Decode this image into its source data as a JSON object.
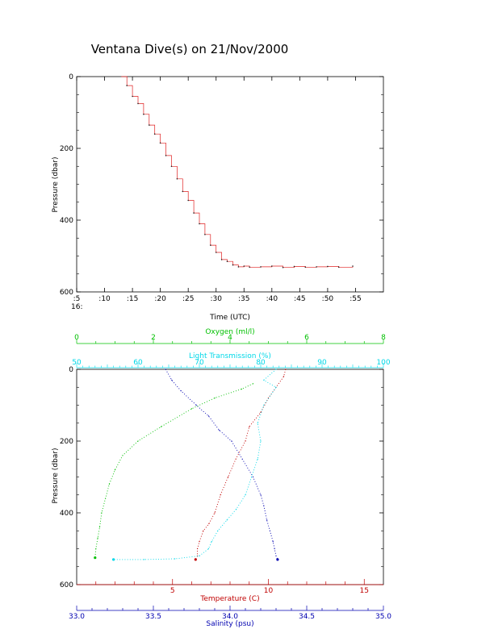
{
  "title": "Ventana Dive(s) on 21/Nov/2000",
  "colors": {
    "axis": "#000000",
    "trace": "#e02020",
    "oxygen": "#00c000",
    "transmission": "#00d8e8",
    "temperature": "#c00000",
    "salinity": "#0000b0"
  },
  "chart_data": [
    {
      "type": "line",
      "title": "Ventana Dive(s) on 21/Nov/2000",
      "xlabel": "Time (UTC)",
      "ylabel": "Pressure (dbar)",
      "x_unit": "minutes past 16:00 UTC",
      "xlim": [
        5,
        60
      ],
      "ylim": [
        600,
        0
      ],
      "x_tick_labels": [
        ":5",
        ":10",
        ":15",
        ":20",
        ":25",
        ":30",
        ":35",
        ":40",
        ":45",
        ":50",
        ":55"
      ],
      "x_tick_values": [
        5,
        10,
        15,
        20,
        25,
        30,
        35,
        40,
        45,
        50,
        55
      ],
      "x_hour_label": "16:",
      "y_ticks": [
        0,
        200,
        400,
        600
      ],
      "grid": false,
      "series": [
        {
          "color": "#e02020",
          "style": "step",
          "x": [
            13.0,
            14.0,
            15.0,
            16.0,
            17.0,
            18.0,
            19.0,
            20.0,
            21.0,
            22.0,
            23.0,
            24.0,
            25.0,
            26.0,
            27.0,
            28.0,
            29.0,
            30.0,
            31.0,
            32.0,
            33.0,
            34.0,
            35.0,
            36.0,
            38.0,
            40.0,
            42.0,
            44.0,
            46.0,
            48.0,
            50.0,
            52.0,
            54.5
          ],
          "y": [
            0,
            25,
            55,
            75,
            105,
            135,
            160,
            185,
            220,
            250,
            285,
            320,
            345,
            380,
            410,
            440,
            470,
            490,
            510,
            515,
            525,
            530,
            528,
            531,
            530,
            528,
            532,
            529,
            531,
            530,
            529,
            531,
            528
          ]
        }
      ]
    },
    {
      "type": "scatter",
      "ylabel": "Pressure (dbar)",
      "ylim": [
        600,
        0
      ],
      "y_ticks": [
        0,
        200,
        400,
        600
      ],
      "grid": false,
      "axes": {
        "oxygen": {
          "label": "Oxygen (ml/l)",
          "range": [
            0,
            8
          ],
          "ticks": [
            0,
            2,
            4,
            6,
            8
          ],
          "position": "top"
        },
        "transmission": {
          "label": "Light Transmission (%)",
          "range": [
            50,
            100
          ],
          "ticks": [
            50,
            60,
            70,
            80,
            90,
            100
          ],
          "position": "top"
        },
        "temperature": {
          "label": "Temperature (C)",
          "range": [
            0,
            16
          ],
          "ticks": [
            5,
            10,
            15
          ],
          "position": "bottom"
        },
        "salinity": {
          "label": "Salinity (psu)",
          "range": [
            33.0,
            35.0
          ],
          "ticks": [
            33.0,
            33.5,
            34.0,
            34.5,
            35.0
          ],
          "position": "bottom"
        }
      },
      "series": [
        {
          "axis": "temperature",
          "color": "#c00000",
          "x": [
            10.9,
            10.8,
            10.4,
            10.0,
            9.6,
            9.0,
            8.8,
            8.3,
            7.9,
            7.5,
            7.2,
            6.9,
            6.6,
            6.4,
            6.3,
            6.3,
            6.2
          ],
          "y": [
            0,
            20,
            50,
            80,
            120,
            160,
            200,
            250,
            300,
            350,
            400,
            430,
            450,
            480,
            500,
            520,
            530
          ]
        },
        {
          "axis": "salinity",
          "color": "#0000b0",
          "x": [
            33.58,
            33.62,
            33.68,
            33.78,
            33.86,
            33.93,
            34.01,
            34.08,
            34.15,
            34.2,
            34.22,
            34.24,
            34.26,
            34.28,
            34.29,
            34.3,
            34.31
          ],
          "y": [
            0,
            30,
            60,
            100,
            130,
            170,
            200,
            250,
            300,
            350,
            380,
            420,
            450,
            480,
            500,
            520,
            530
          ]
        },
        {
          "axis": "oxygen",
          "color": "#00c000",
          "x": [
            4.6,
            4.3,
            3.6,
            3.0,
            2.2,
            1.6,
            1.2,
            1.0,
            0.85,
            0.75,
            0.65,
            0.6,
            0.55,
            0.5,
            0.48
          ],
          "y": [
            40,
            55,
            80,
            110,
            160,
            200,
            240,
            280,
            320,
            360,
            400,
            440,
            470,
            500,
            525
          ]
        },
        {
          "axis": "transmission",
          "color": "#00d8e8",
          "x": [
            82.5,
            80.5,
            82.5,
            80.5,
            79.5,
            80.0,
            79.5,
            78.5,
            77.5,
            76.0,
            74.5,
            73.0,
            72.0,
            71.5,
            70.0,
            66.0,
            61.0,
            56.0
          ],
          "y": [
            0,
            30,
            50,
            100,
            150,
            200,
            250,
            300,
            350,
            390,
            420,
            450,
            480,
            500,
            520,
            528,
            530,
            530
          ]
        }
      ]
    }
  ]
}
